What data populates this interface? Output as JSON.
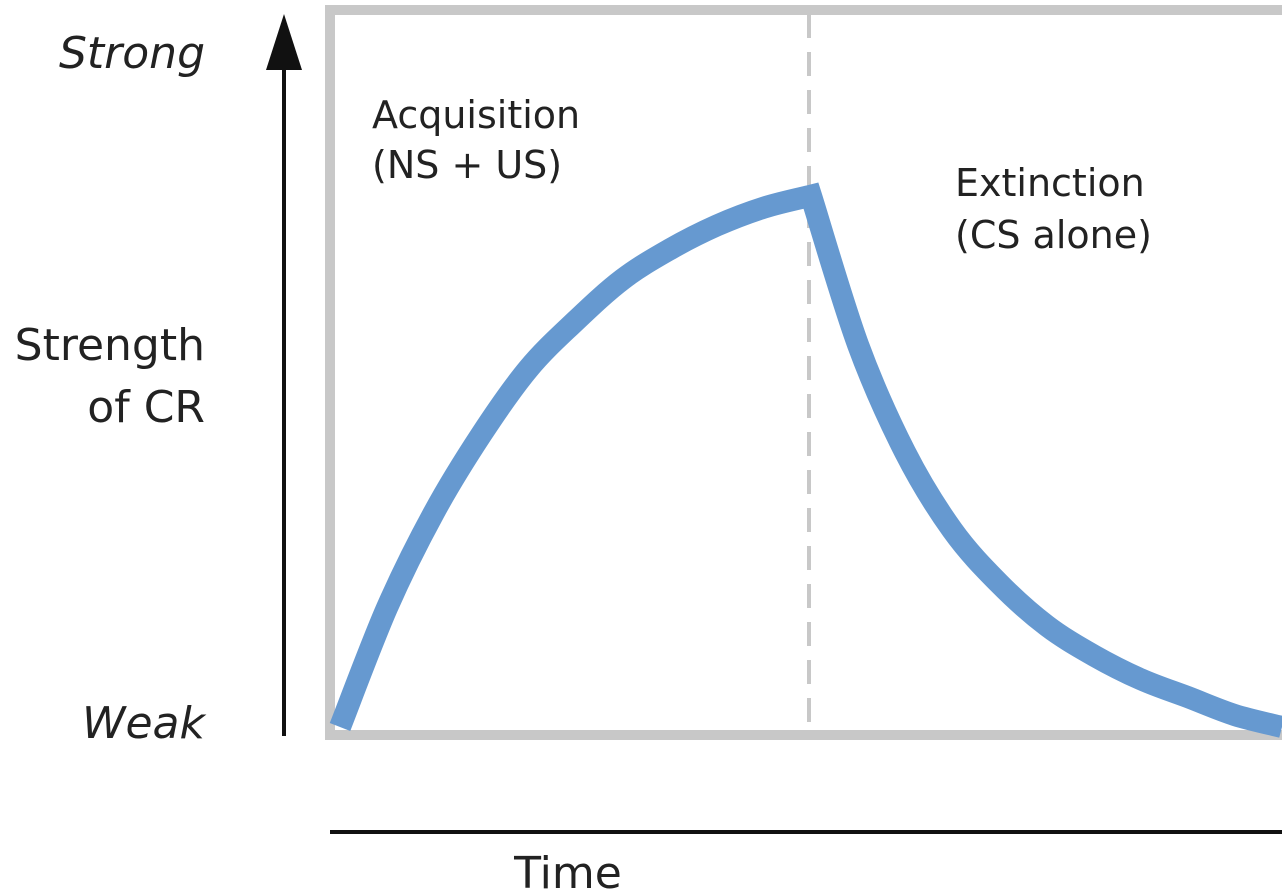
{
  "chart_data": {
    "type": "line",
    "xlabel": "Time",
    "ylabel_lines": [
      "Strength",
      "of CR"
    ],
    "y_top_label": "Strong",
    "y_bottom_label": "Weak",
    "x_range": [
      0,
      1
    ],
    "y_range": [
      0,
      1
    ],
    "phase_boundary_x": 0.5,
    "phases": [
      {
        "lines": [
          "Acquisition",
          "(NS + US)"
        ]
      },
      {
        "lines": [
          "Extinction",
          "(CS alone)"
        ]
      }
    ],
    "series": [
      {
        "x": [
          0,
          0.05,
          0.1,
          0.15,
          0.2,
          0.25,
          0.3,
          0.35,
          0.4,
          0.45,
          0.5,
          0.55,
          0.6,
          0.65,
          0.7,
          0.75,
          0.8,
          0.85,
          0.9,
          0.95,
          1.0
        ],
        "y": [
          0,
          0.2,
          0.36,
          0.49,
          0.6,
          0.68,
          0.75,
          0.8,
          0.84,
          0.87,
          0.89,
          0.64,
          0.46,
          0.33,
          0.24,
          0.17,
          0.12,
          0.08,
          0.05,
          0.02,
          0
        ]
      }
    ],
    "colors": {
      "curve": "#6699d0",
      "frame": "#c8c8c8",
      "divider": "#c8c8c8",
      "axis": "#111111",
      "text": "#222222"
    },
    "grid": false
  }
}
